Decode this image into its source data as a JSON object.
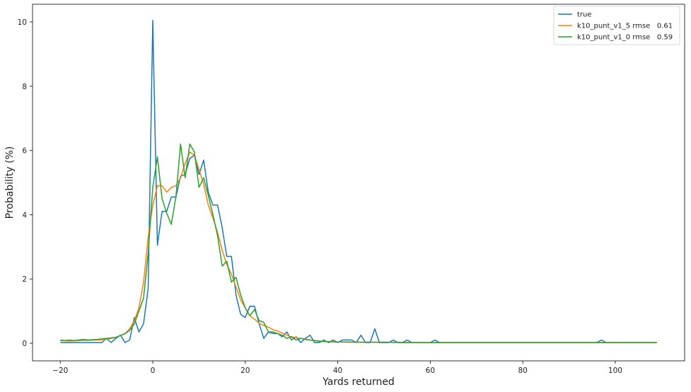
{
  "chart_data": {
    "type": "line",
    "title": "",
    "xlabel": "Yards returned",
    "ylabel": "Probability (%)",
    "xlim": [
      -26,
      115
    ],
    "ylim": [
      -0.55,
      10.55
    ],
    "xticks": [
      -20,
      0,
      20,
      40,
      60,
      80,
      100
    ],
    "yticks": [
      0,
      2,
      4,
      6,
      8,
      10
    ],
    "xtick_labels": [
      "−20",
      "0",
      "20",
      "40",
      "60",
      "80",
      "100"
    ],
    "ytick_labels": [
      "0",
      "2",
      "4",
      "6",
      "8",
      "10"
    ],
    "legend_position": "top-right",
    "grid": false,
    "series": [
      {
        "name": "true",
        "color": "#1f77b4",
        "x": [
          -20,
          -19,
          -18,
          -17,
          -16,
          -15,
          -14,
          -13,
          -12,
          -11,
          -10,
          -9,
          -8,
          -7,
          -6,
          -5,
          -4,
          -3,
          -2,
          -1,
          0,
          1,
          2,
          3,
          4,
          5,
          6,
          7,
          8,
          9,
          10,
          11,
          12,
          13,
          14,
          15,
          16,
          17,
          18,
          19,
          20,
          21,
          22,
          23,
          24,
          25,
          26,
          27,
          28,
          29,
          30,
          31,
          32,
          33,
          34,
          35,
          36,
          37,
          38,
          39,
          40,
          41,
          42,
          43,
          44,
          45,
          46,
          47,
          48,
          49,
          50,
          51,
          52,
          53,
          54,
          55,
          56,
          57,
          58,
          59,
          60,
          61,
          62,
          63,
          64,
          65,
          70,
          75,
          80,
          85,
          90,
          95,
          96,
          97,
          98,
          99,
          100,
          105,
          109
        ],
        "y": [
          0.02,
          0.02,
          0.02,
          0.02,
          0.02,
          0.02,
          0.02,
          0.02,
          0.02,
          0.02,
          0.15,
          0.02,
          0.15,
          0.25,
          0.02,
          0.1,
          0.8,
          0.35,
          0.6,
          1.7,
          10.05,
          3.05,
          4.1,
          4.1,
          4.55,
          4.55,
          5.2,
          5.25,
          5.75,
          5.85,
          5.25,
          5.7,
          4.7,
          4.3,
          4.3,
          3.6,
          2.7,
          2.7,
          1.5,
          0.9,
          0.8,
          1.15,
          1.15,
          0.6,
          0.15,
          0.35,
          0.3,
          0.3,
          0.2,
          0.35,
          0.1,
          0.2,
          0.02,
          0.15,
          0.25,
          0.02,
          0.02,
          0.1,
          0.02,
          0.1,
          0.02,
          0.1,
          0.1,
          0.1,
          0.02,
          0.25,
          0.02,
          0.02,
          0.45,
          0.02,
          0.02,
          0.02,
          0.1,
          0.02,
          0.02,
          0.1,
          0.02,
          0.02,
          0.02,
          0.02,
          0.02,
          0.1,
          0.02,
          0.02,
          0.02,
          0.02,
          0.02,
          0.02,
          0.02,
          0.02,
          0.02,
          0.02,
          0.02,
          0.1,
          0.02,
          0.02,
          0.02,
          0.02,
          0.02
        ]
      },
      {
        "name": "k10_punt_v1_5 rmse   0.61",
        "color": "#ff7f0e",
        "x": [
          -20,
          -18,
          -16,
          -14,
          -12,
          -10,
          -8,
          -6,
          -5,
          -4,
          -3,
          -2,
          -1,
          0,
          1,
          2,
          3,
          4,
          5,
          6,
          7,
          8,
          9,
          10,
          11,
          12,
          13,
          14,
          15,
          16,
          17,
          18,
          19,
          20,
          21,
          22,
          23,
          24,
          25,
          26,
          27,
          28,
          29,
          30,
          32,
          34,
          36,
          38,
          40,
          45,
          50,
          55,
          60,
          70,
          80,
          90,
          100,
          109
        ],
        "y": [
          0.08,
          0.07,
          0.08,
          0.09,
          0.1,
          0.12,
          0.18,
          0.3,
          0.45,
          0.7,
          1.1,
          1.9,
          3.3,
          4.3,
          4.9,
          4.9,
          4.7,
          4.85,
          4.9,
          5.15,
          5.6,
          5.95,
          5.85,
          5.4,
          4.95,
          4.3,
          3.9,
          3.45,
          2.9,
          2.45,
          2.15,
          1.75,
          1.35,
          1.1,
          0.85,
          0.75,
          0.62,
          0.55,
          0.5,
          0.42,
          0.38,
          0.32,
          0.25,
          0.2,
          0.15,
          0.1,
          0.07,
          0.05,
          0.04,
          0.03,
          0.03,
          0.02,
          0.02,
          0.02,
          0.02,
          0.02,
          0.02,
          0.02
        ]
      },
      {
        "name": "k10_punt_v1_0 rmse   0.59",
        "color": "#2ca02c",
        "x": [
          -20,
          -19,
          -18,
          -17,
          -16,
          -15,
          -14,
          -12,
          -10,
          -8,
          -6,
          -5,
          -4,
          -3,
          -2,
          -1,
          0,
          1,
          2,
          3,
          4,
          5,
          6,
          7,
          8,
          9,
          10,
          11,
          12,
          13,
          14,
          15,
          16,
          17,
          18,
          19,
          20,
          21,
          22,
          23,
          24,
          25,
          26,
          27,
          28,
          29,
          30,
          31,
          32,
          33,
          34,
          35,
          36,
          37,
          38,
          39,
          40,
          45,
          50,
          55,
          60,
          70,
          80,
          90,
          100,
          109
        ],
        "y": [
          0.1,
          0.08,
          0.1,
          0.08,
          0.1,
          0.12,
          0.1,
          0.12,
          0.15,
          0.18,
          0.3,
          0.4,
          0.6,
          1.0,
          1.4,
          2.8,
          4.85,
          5.8,
          4.5,
          4.05,
          3.7,
          4.55,
          6.2,
          5.15,
          6.2,
          5.95,
          4.85,
          5.15,
          4.6,
          4.0,
          3.35,
          2.4,
          2.55,
          1.9,
          2.05,
          1.5,
          1.1,
          0.85,
          1.05,
          0.7,
          0.65,
          0.35,
          0.35,
          0.3,
          0.25,
          0.15,
          0.2,
          0.1,
          0.15,
          0.12,
          0.1,
          0.08,
          0.06,
          0.05,
          0.05,
          0.04,
          0.04,
          0.03,
          0.03,
          0.02,
          0.02,
          0.02,
          0.02,
          0.02,
          0.02,
          0.02
        ]
      }
    ]
  }
}
